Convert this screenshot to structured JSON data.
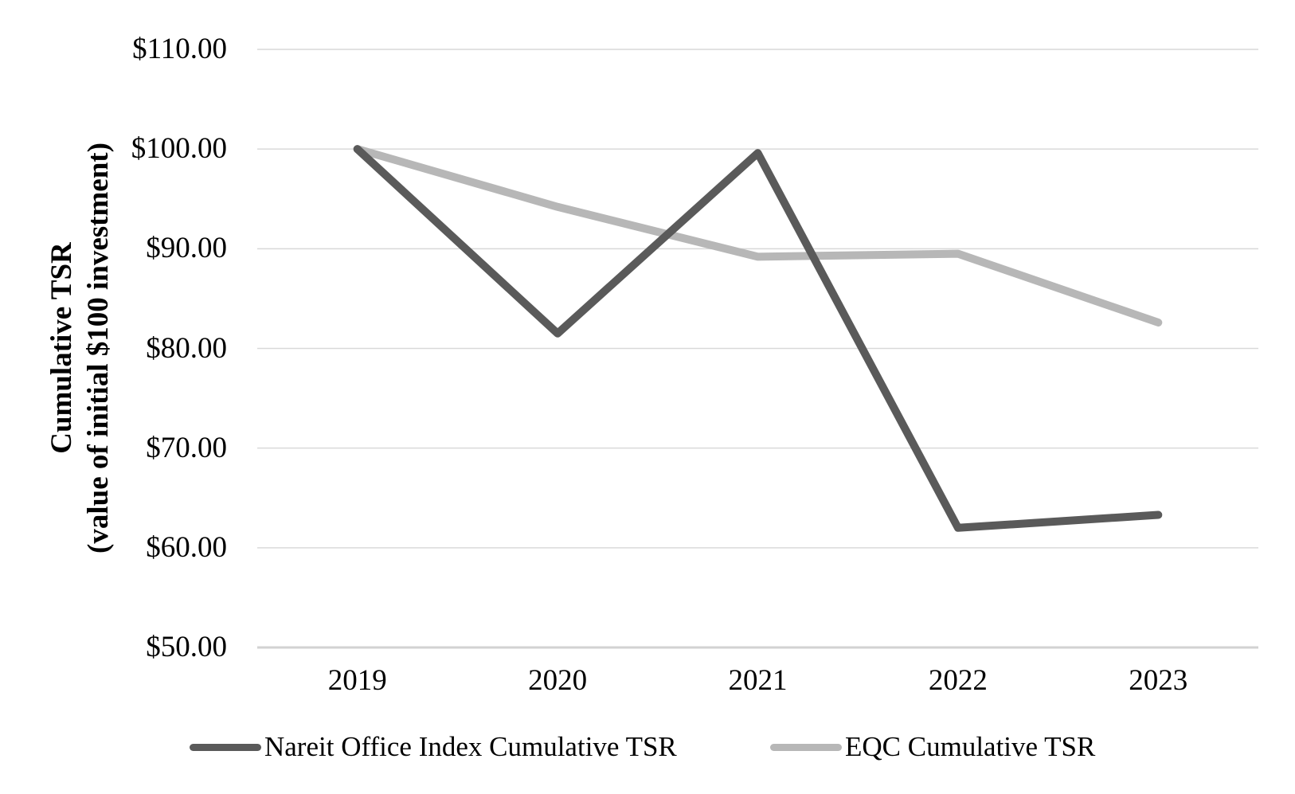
{
  "chart_data": {
    "type": "line",
    "title": "",
    "categories": [
      "2019",
      "2020",
      "2021",
      "2022",
      "2023"
    ],
    "series": [
      {
        "name": "Nareit Office Index Cumulative TSR",
        "color": "#5a5a5a",
        "values": [
          100.0,
          81.5,
          99.6,
          62.0,
          63.3
        ]
      },
      {
        "name": "EQC Cumulative TSR",
        "color": "#b7b7b7",
        "values": [
          100.0,
          94.2,
          89.2,
          89.5,
          82.6
        ]
      }
    ],
    "ylabel_line1": "Cumulative TSR",
    "ylabel_line2": "(value of initial $100 investment)",
    "xlabel": "",
    "y_ticks": [
      "$110.00",
      "$100.00",
      "$90.00",
      "$80.00",
      "$70.00",
      "$60.00",
      "$50.00"
    ],
    "y_tick_values": [
      110,
      100,
      90,
      80,
      70,
      60,
      50
    ],
    "ylim": [
      50,
      110
    ],
    "grid": "horizontal",
    "gridline_color": "#d9d9d9",
    "axisline_color": "#d2d2d2",
    "text_color": "#000000",
    "legend_position": "bottom"
  }
}
